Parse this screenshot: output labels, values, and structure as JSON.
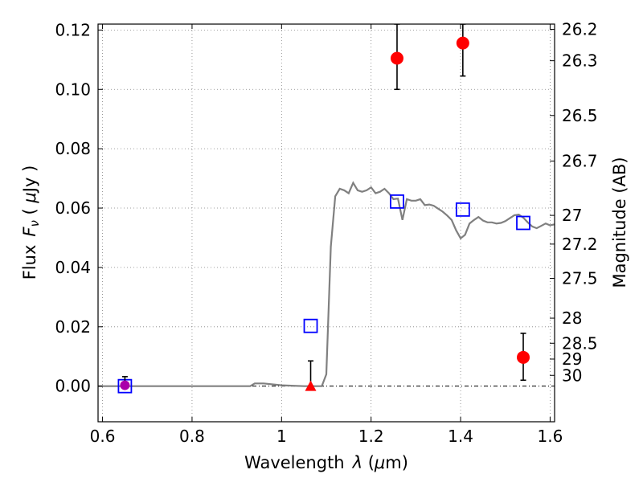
{
  "chart_data": {
    "type": "scatter",
    "xlabel_text": "Wavelength",
    "xlabel_symbol": "λ",
    "xlabel_unit_open": " (",
    "xlabel_unit_mu": "μ",
    "xlabel_unit_close": "m)",
    "ylabel_text": "Flux",
    "ylabel_symbol_F": "F",
    "ylabel_symbol_nu": "ν",
    "ylabel_unit_open": "  ( ",
    "ylabel_unit_mu": "μ",
    "ylabel_unit_close": "Jy )",
    "y2label": "Magnitude (AB)",
    "xlim": [
      0.59,
      1.61
    ],
    "ylim": [
      -0.012,
      0.122
    ],
    "grid": true,
    "x_ticks": [
      {
        "value": 0.6,
        "label": "0.6"
      },
      {
        "value": 0.8,
        "label": "0.8"
      },
      {
        "value": 1.0,
        "label": "1"
      },
      {
        "value": 1.2,
        "label": "1.2"
      },
      {
        "value": 1.4,
        "label": "1.4"
      },
      {
        "value": 1.6,
        "label": "1.6"
      }
    ],
    "y_ticks": [
      {
        "value": 0.0,
        "label": "0.00"
      },
      {
        "value": 0.02,
        "label": "0.02"
      },
      {
        "value": 0.04,
        "label": "0.04"
      },
      {
        "value": 0.06,
        "label": "0.06"
      },
      {
        "value": 0.08,
        "label": "0.08"
      },
      {
        "value": 0.1,
        "label": "0.10"
      },
      {
        "value": 0.12,
        "label": "0.12"
      }
    ],
    "y2_ticks": [
      {
        "mag": 26.2,
        "label": "26.2"
      },
      {
        "mag": 26.3,
        "label": "26.3"
      },
      {
        "mag": 26.5,
        "label": "26.5"
      },
      {
        "mag": 26.7,
        "label": "26.7"
      },
      {
        "mag": 27.0,
        "label": "27"
      },
      {
        "mag": 27.2,
        "label": "27.2"
      },
      {
        "mag": 27.5,
        "label": "27.5"
      },
      {
        "mag": 28.0,
        "label": "28"
      },
      {
        "mag": 28.5,
        "label": "28.5"
      },
      {
        "mag": 29.0,
        "label": "29"
      },
      {
        "mag": 30.0,
        "label": "30"
      }
    ],
    "model_spectrum": {
      "color": "#808080",
      "x": [
        0.59,
        0.93,
        0.94,
        0.96,
        1.0,
        1.05,
        1.09,
        1.1,
        1.11,
        1.12,
        1.13,
        1.14,
        1.15,
        1.16,
        1.17,
        1.18,
        1.19,
        1.2,
        1.21,
        1.22,
        1.23,
        1.24,
        1.25,
        1.26,
        1.27,
        1.28,
        1.29,
        1.3,
        1.31,
        1.32,
        1.33,
        1.34,
        1.35,
        1.36,
        1.37,
        1.38,
        1.39,
        1.4,
        1.41,
        1.42,
        1.43,
        1.44,
        1.45,
        1.46,
        1.47,
        1.48,
        1.49,
        1.5,
        1.51,
        1.52,
        1.53,
        1.54,
        1.55,
        1.56,
        1.57,
        1.58,
        1.59,
        1.6,
        1.61
      ],
      "y": [
        0.0,
        0.0,
        0.0009,
        0.0009,
        0.0003,
        0.0,
        0.0,
        0.004,
        0.047,
        0.064,
        0.0665,
        0.066,
        0.065,
        0.0685,
        0.066,
        0.0655,
        0.066,
        0.067,
        0.065,
        0.0655,
        0.0665,
        0.065,
        0.063,
        0.0632,
        0.056,
        0.063,
        0.0625,
        0.0625,
        0.063,
        0.061,
        0.0612,
        0.0608,
        0.0598,
        0.0588,
        0.0575,
        0.056,
        0.0525,
        0.0498,
        0.051,
        0.0548,
        0.056,
        0.057,
        0.0558,
        0.0552,
        0.0552,
        0.0548,
        0.055,
        0.0556,
        0.0566,
        0.0576,
        0.0578,
        0.0568,
        0.0552,
        0.0538,
        0.0532,
        0.054,
        0.0548,
        0.0542,
        0.0545
      ]
    },
    "model_points": {
      "color": "#0000ff",
      "x": [
        0.65,
        1.065,
        1.258,
        1.405,
        1.54
      ],
      "y": [
        0.0,
        0.0203,
        0.0622,
        0.0595,
        0.055
      ]
    },
    "observed_points": {
      "color": "#ff0000",
      "x": [
        1.258,
        1.405,
        1.54
      ],
      "y": [
        0.1105,
        0.1156,
        0.0097
      ],
      "err_low": [
        0.1,
        0.1045,
        0.002
      ],
      "err_high": [
        0.122,
        0.122,
        0.0178
      ]
    },
    "upper_limit_point": {
      "color": "#ff0000",
      "x": 1.065,
      "y": 0.0,
      "err_low": 0.0,
      "err_high": 0.0085
    },
    "low_point": {
      "color": "#aa00aa",
      "x": 0.65,
      "y": 0.0003,
      "err_low": -0.0003,
      "err_high": 0.0032
    }
  }
}
